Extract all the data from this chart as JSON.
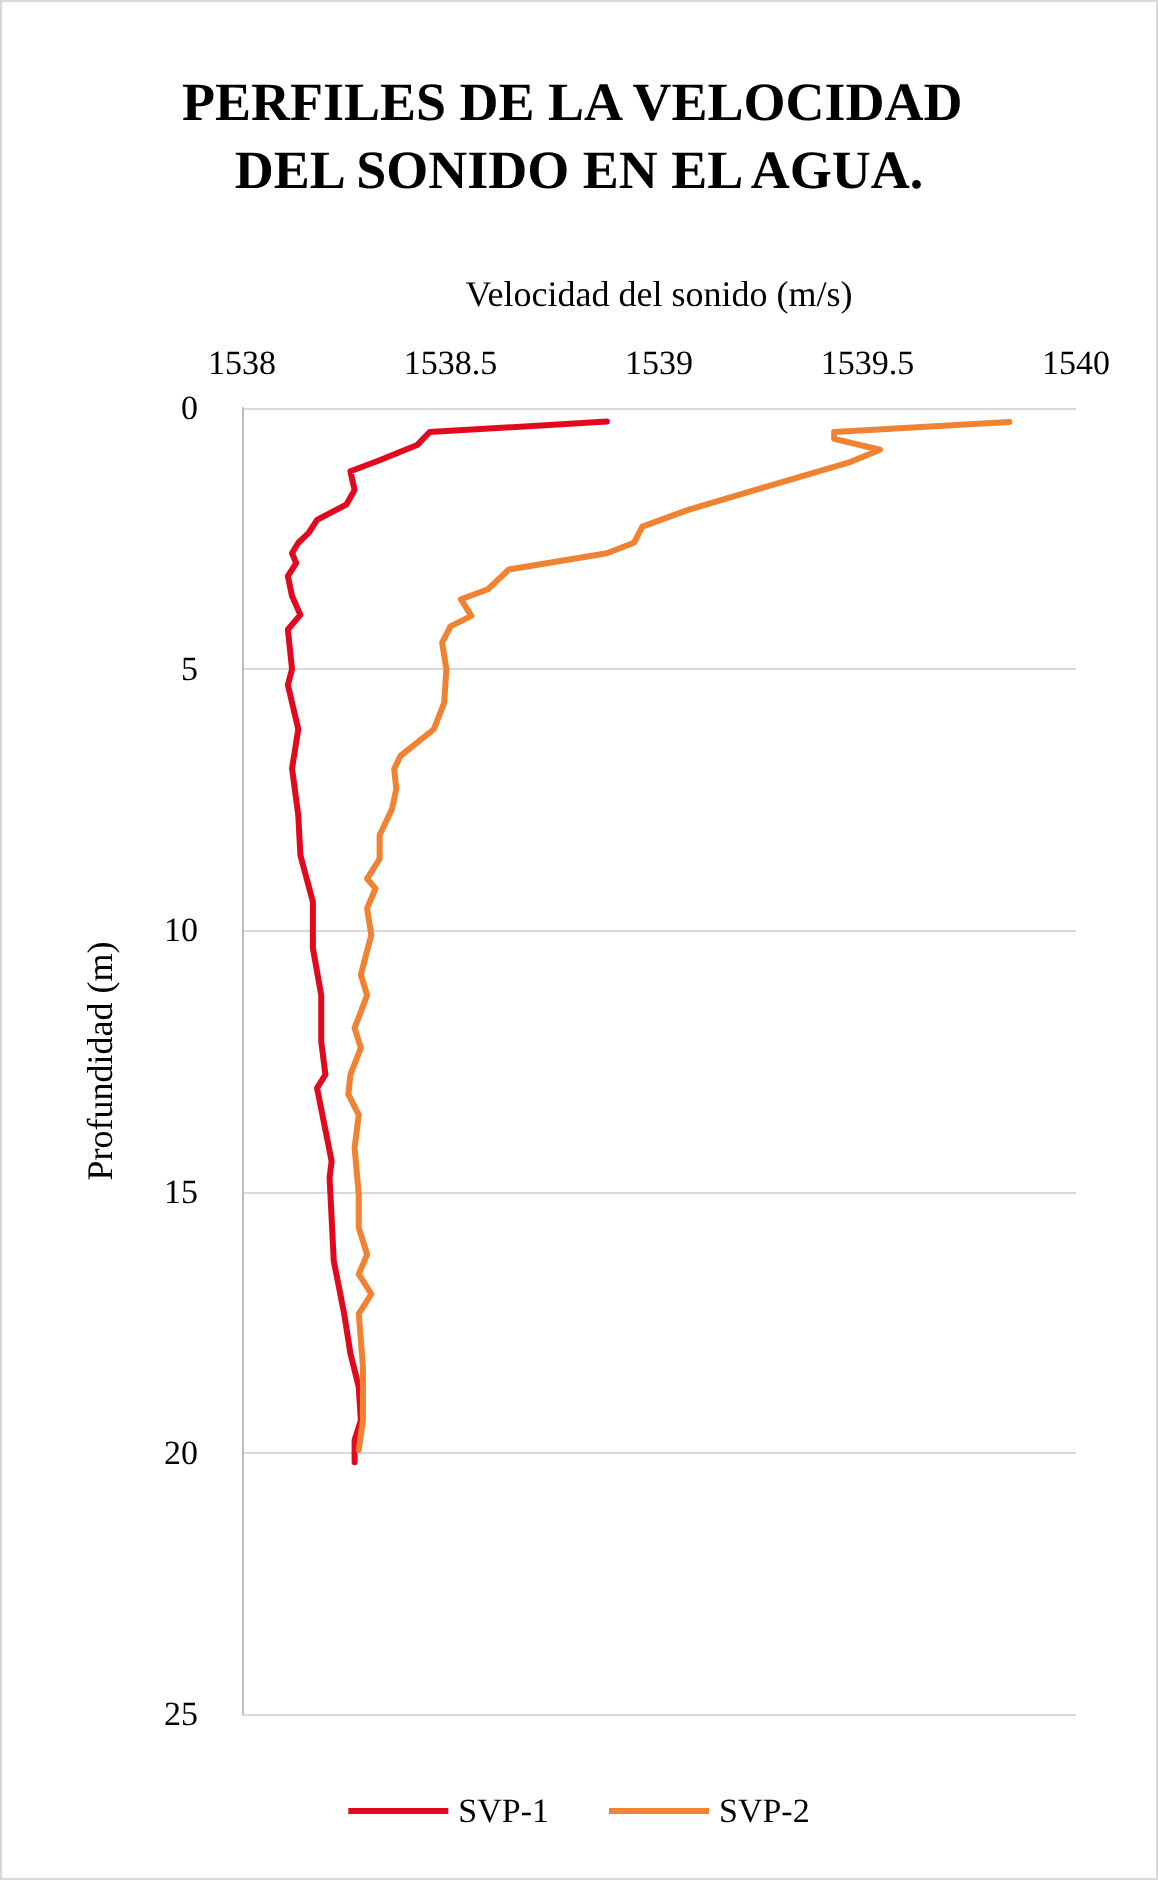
{
  "chart_data": {
    "type": "line",
    "title": "PERFILES DE LA VELOCIDAD DEL SONIDO EN EL AGUA.",
    "xlabel": "Velocidad del sonido (m/s)",
    "ylabel": "Profundidad (m)",
    "xlim": [
      1538,
      1540
    ],
    "xticks": [
      1538,
      1538.5,
      1539,
      1539.5,
      1540
    ],
    "ylim": [
      25,
      0
    ],
    "yticks": [
      0,
      5,
      10,
      15,
      20,
      25
    ],
    "grid": "y",
    "legend": "bottom",
    "marker": "none",
    "line_style": "solid",
    "series": [
      {
        "name": "SVP-1",
        "color": "#e2091f",
        "x": [
          1538.875,
          1538.45,
          1538.42,
          1538.33,
          1538.26,
          1538.27,
          1538.25,
          1538.18,
          1538.16,
          1538.135,
          1538.12,
          1538.13,
          1538.11,
          1538.12,
          1538.14,
          1538.11,
          1538.12,
          1538.11,
          1538.135,
          1538.12,
          1538.135,
          1538.14,
          1538.17,
          1538.17,
          1538.19,
          1538.19,
          1538.2,
          1538.18,
          1538.215,
          1538.21,
          1538.22,
          1538.245,
          1538.26,
          1538.28,
          1538.285,
          1538.27,
          1538.27
        ],
        "values": [
          0.26,
          0.46,
          0.71,
          1.0,
          1.21,
          1.57,
          1.85,
          2.14,
          2.39,
          2.58,
          2.78,
          2.97,
          3.22,
          3.6,
          3.96,
          4.24,
          5.0,
          5.3,
          6.15,
          6.9,
          7.8,
          8.56,
          9.45,
          10.34,
          11.24,
          12.13,
          12.76,
          13.02,
          14.42,
          14.73,
          16.32,
          17.34,
          18.1,
          18.74,
          19.38,
          19.76,
          20.18
        ]
      },
      {
        "name": "SVP-2",
        "color": "#f08232",
        "x": [
          1539.84,
          1539.42,
          1539.42,
          1539.53,
          1539.46,
          1539.26,
          1539.07,
          1538.96,
          1538.94,
          1538.875,
          1538.64,
          1538.59,
          1538.525,
          1538.55,
          1538.5,
          1538.48,
          1538.49,
          1538.485,
          1538.46,
          1538.38,
          1538.365,
          1538.37,
          1538.36,
          1538.33,
          1538.33,
          1538.3,
          1538.32,
          1538.3,
          1538.31,
          1538.285,
          1538.3,
          1538.27,
          1538.285,
          1538.26,
          1538.255,
          1538.28,
          1538.27,
          1538.28,
          1538.28,
          1538.3,
          1538.28,
          1538.31,
          1538.28,
          1538.29,
          1538.29,
          1538.28
        ],
        "values": [
          0.27,
          0.46,
          0.59,
          0.8,
          1.03,
          1.5,
          1.95,
          2.27,
          2.58,
          2.78,
          3.09,
          3.47,
          3.66,
          3.98,
          4.18,
          4.49,
          5.0,
          5.64,
          6.15,
          6.66,
          6.91,
          7.29,
          7.67,
          8.18,
          8.63,
          9.01,
          9.2,
          9.58,
          10.09,
          10.85,
          11.24,
          11.87,
          12.25,
          12.76,
          13.14,
          13.53,
          14.16,
          15.05,
          15.69,
          16.2,
          16.58,
          16.96,
          17.34,
          18.36,
          19.38,
          19.95
        ]
      }
    ]
  }
}
